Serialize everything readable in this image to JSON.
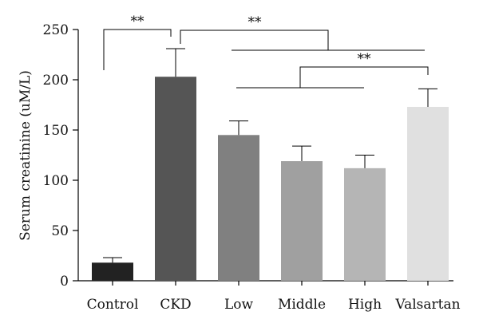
{
  "chart_data": {
    "type": "bar",
    "categories": [
      "Control",
      "CKD",
      "Low",
      "Middle",
      "High",
      "Valsartan"
    ],
    "values": [
      18,
      203,
      145,
      119,
      112,
      173
    ],
    "errors": [
      5,
      28,
      14,
      15,
      13,
      18
    ],
    "colors": [
      "#222222",
      "#555555",
      "#808080",
      "#a0a0a0",
      "#b5b5b5",
      "#e0e0e0"
    ],
    "ylabel": "Serum creatinine (uM/L)",
    "ylim": [
      0,
      250
    ],
    "yticks": [
      0,
      50,
      100,
      150,
      200,
      250
    ],
    "grid": false,
    "significance": [
      {
        "label": "**",
        "comparison": "Control vs CKD"
      },
      {
        "label": "**",
        "comparison": "CKD vs Low, Middle, High, Valsartan"
      },
      {
        "label": "**",
        "comparison": "Valsartan vs Low, Middle, High"
      }
    ]
  }
}
